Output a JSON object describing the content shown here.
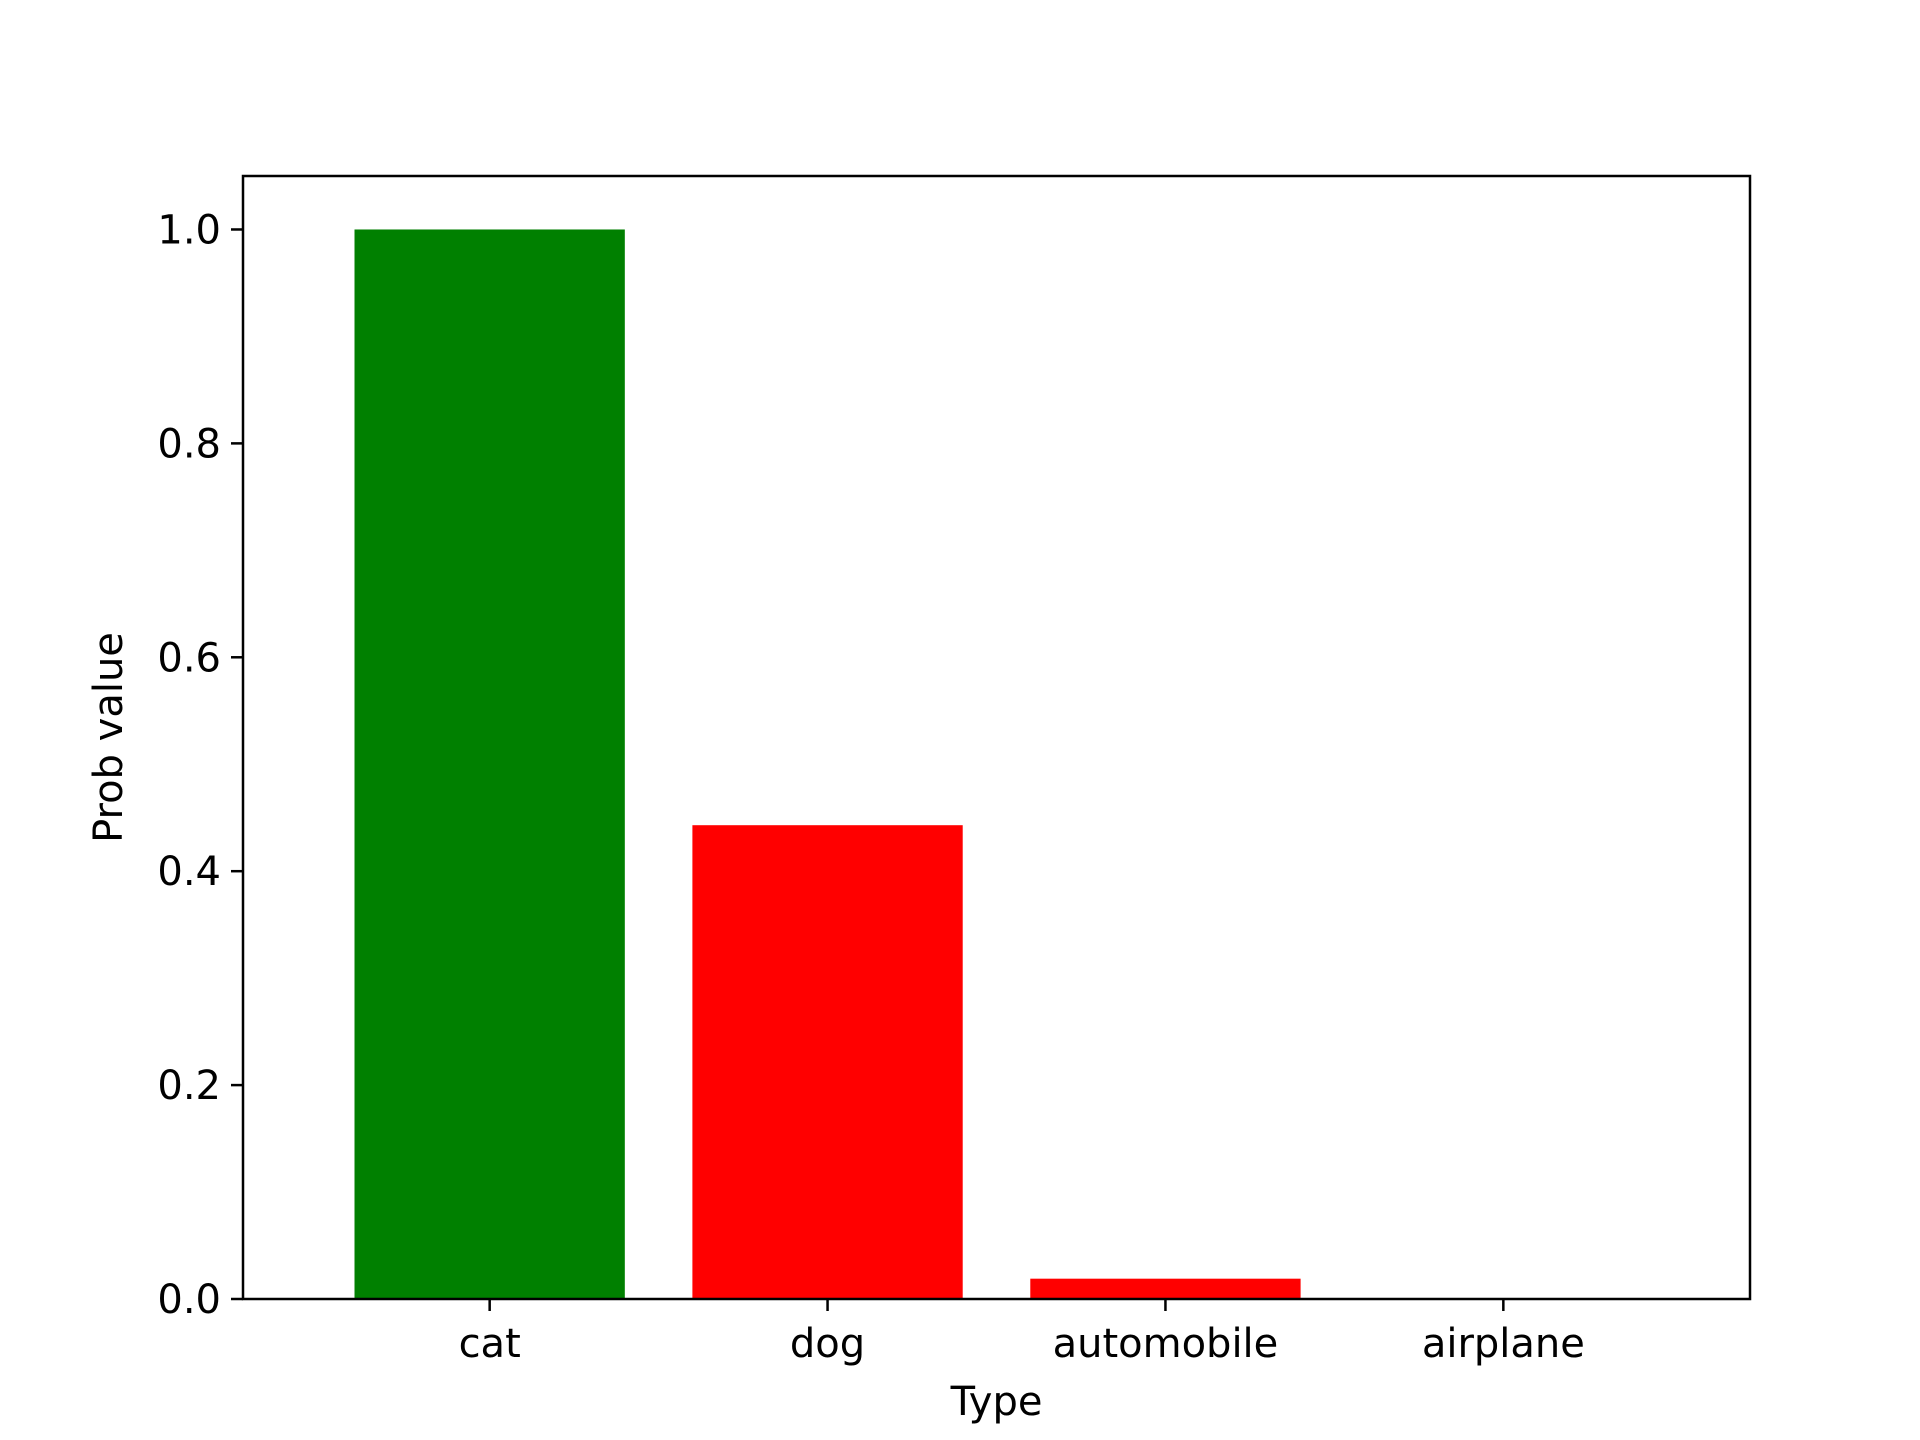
{
  "chart_data": {
    "type": "bar",
    "title": "",
    "xlabel": "Type",
    "ylabel": "Prob value",
    "categories": [
      "cat",
      "dog",
      "automobile",
      "airplane"
    ],
    "values": [
      1.0,
      0.443,
      0.019,
      0.0
    ],
    "colors": [
      "#008000",
      "#ff0000",
      "#ff0000",
      "#ff0000"
    ],
    "ylim": [
      0,
      1.05
    ],
    "yticks": [
      0.0,
      0.2,
      0.4,
      0.6,
      0.8,
      1.0
    ],
    "ytick_labels": [
      "0.0",
      "0.2",
      "0.4",
      "0.6",
      "0.8",
      "1.0"
    ],
    "grid": false,
    "legend": false
  }
}
